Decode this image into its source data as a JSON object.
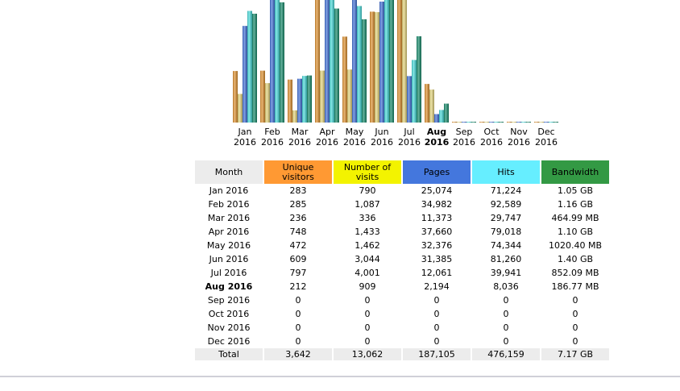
{
  "chart_data": {
    "type": "bar",
    "title": "",
    "xlabel": "",
    "ylabel": "",
    "current_month_index": 7,
    "categories": [
      "Jan 2016",
      "Feb 2016",
      "Mar 2016",
      "Apr 2016",
      "May 2016",
      "Jun 2016",
      "Jul 2016",
      "Aug 2016",
      "Sep 2016",
      "Oct 2016",
      "Nov 2016",
      "Dec 2016"
    ],
    "tick_labels": [
      {
        "month": "Jan",
        "year": "2016"
      },
      {
        "month": "Feb",
        "year": "2016"
      },
      {
        "month": "Mar",
        "year": "2016"
      },
      {
        "month": "Apr",
        "year": "2016"
      },
      {
        "month": "May",
        "year": "2016"
      },
      {
        "month": "Jun",
        "year": "2016"
      },
      {
        "month": "Jul",
        "year": "2016"
      },
      {
        "month": "Aug",
        "year": "2016"
      },
      {
        "month": "Sep",
        "year": "2016"
      },
      {
        "month": "Oct",
        "year": "2016"
      },
      {
        "month": "Nov",
        "year": "2016"
      },
      {
        "month": "Dec",
        "year": "2016"
      }
    ],
    "series": [
      {
        "name": "Unique visitors",
        "color": "#e0902c",
        "values": [
          283,
          285,
          236,
          748,
          472,
          609,
          797,
          212,
          0,
          0,
          0,
          0
        ]
      },
      {
        "name": "Number of visits",
        "color": "#e6d57a",
        "values": [
          790,
          1087,
          336,
          1433,
          1462,
          3044,
          4001,
          909,
          0,
          0,
          0,
          0
        ]
      },
      {
        "name": "Pages",
        "color": "#3f6fd8",
        "values": [
          25074,
          34982,
          11373,
          37660,
          32376,
          31385,
          12061,
          2194,
          0,
          0,
          0,
          0
        ]
      },
      {
        "name": "Hits",
        "color": "#45dcdc",
        "values": [
          71224,
          92589,
          29747,
          79018,
          74344,
          81260,
          39941,
          8036,
          0,
          0,
          0,
          0
        ]
      },
      {
        "name": "Bandwidth (MB)",
        "color": "#138a6a",
        "values": [
          1075.2,
          1187.84,
          464.99,
          1126.4,
          1020.4,
          1433.6,
          852.09,
          186.77,
          0,
          0,
          0,
          0
        ]
      }
    ]
  },
  "table": {
    "headers": [
      "Month",
      "Unique visitors",
      "Number of visits",
      "Pages",
      "Hits",
      "Bandwidth"
    ],
    "header_lines": [
      [
        "Month"
      ],
      [
        "Unique",
        "visitors"
      ],
      [
        "Number of",
        "visits"
      ],
      [
        "Pages"
      ],
      [
        "Hits"
      ],
      [
        "Bandwidth"
      ]
    ],
    "header_colors": [
      "#ececec",
      "#ff9933",
      "#f3f300",
      "#4477dd",
      "#66eeff",
      "#339944"
    ],
    "rows": [
      [
        "Jan 2016",
        "283",
        "790",
        "25,074",
        "71,224",
        "1.05 GB"
      ],
      [
        "Feb 2016",
        "285",
        "1,087",
        "34,982",
        "92,589",
        "1.16 GB"
      ],
      [
        "Mar 2016",
        "236",
        "336",
        "11,373",
        "29,747",
        "464.99 MB"
      ],
      [
        "Apr 2016",
        "748",
        "1,433",
        "37,660",
        "79,018",
        "1.10 GB"
      ],
      [
        "May 2016",
        "472",
        "1,462",
        "32,376",
        "74,344",
        "1020.40 MB"
      ],
      [
        "Jun 2016",
        "609",
        "3,044",
        "31,385",
        "81,260",
        "1.40 GB"
      ],
      [
        "Jul 2016",
        "797",
        "4,001",
        "12,061",
        "39,941",
        "852.09 MB"
      ],
      [
        "Aug 2016",
        "212",
        "909",
        "2,194",
        "8,036",
        "186.77 MB"
      ],
      [
        "Sep 2016",
        "0",
        "0",
        "0",
        "0",
        "0"
      ],
      [
        "Oct 2016",
        "0",
        "0",
        "0",
        "0",
        "0"
      ],
      [
        "Nov 2016",
        "0",
        "0",
        "0",
        "0",
        "0"
      ],
      [
        "Dec 2016",
        "0",
        "0",
        "0",
        "0",
        "0"
      ]
    ],
    "total": [
      "Total",
      "3,642",
      "13,062",
      "187,105",
      "476,159",
      "7.17 GB"
    ]
  }
}
